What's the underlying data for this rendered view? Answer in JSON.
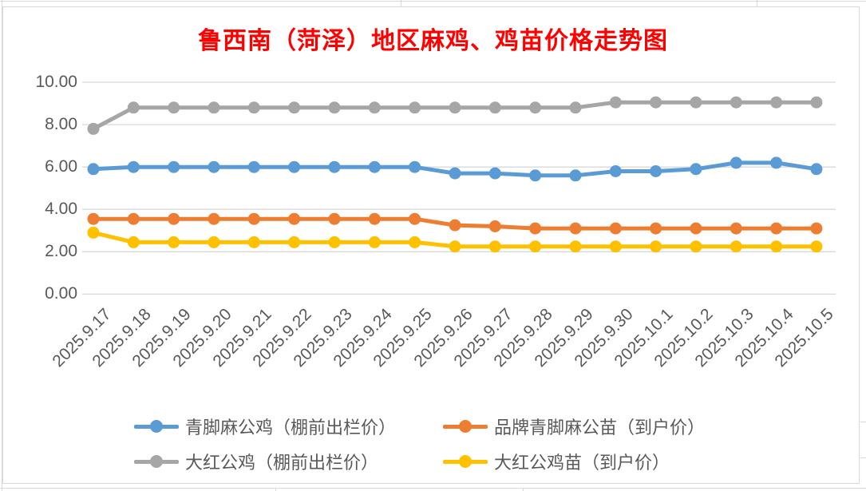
{
  "title": "鲁西南（菏泽）地区麻鸡、鸡苗价格走势图",
  "colors": {
    "title_red": "#ff0000",
    "axis_text": "#595959",
    "gridline": "#d9d9d9",
    "frame_border": "#d9d9d9",
    "background": "#ffffff",
    "series_blue": "#5b9bd5",
    "series_orange": "#ed7d31",
    "series_gray": "#a6a6a6",
    "series_yellow": "#ffc000"
  },
  "chart_data": {
    "type": "line",
    "title": "鲁西南（菏泽）地区麻鸡、鸡苗价格走势图",
    "xlabel": "",
    "ylabel": "",
    "ylim": [
      0,
      10
    ],
    "y_ticks": [
      "10.00",
      "8.00",
      "6.00",
      "4.00",
      "2.00",
      "0.00"
    ],
    "grid": true,
    "legend_position": "bottom",
    "categories": [
      "2025.9.17",
      "2025.9.18",
      "2025.9.19",
      "2025.9.20",
      "2025.9.21",
      "2025.9.22",
      "2025.9.23",
      "2025.9.24",
      "2025.9.25",
      "2025.9.26",
      "2025.9.27",
      "2025.9.28",
      "2025.9.29",
      "2025.9.30",
      "2025.10.1",
      "2025.10.2",
      "2025.10.3",
      "2025.10.4",
      "2025.10.5"
    ],
    "series": [
      {
        "name": "青脚麻公鸡（棚前出栏价）",
        "color": "#5b9bd5",
        "values": [
          5.9,
          6.0,
          6.0,
          6.0,
          6.0,
          6.0,
          6.0,
          6.0,
          6.0,
          5.7,
          5.7,
          5.6,
          5.6,
          5.8,
          5.8,
          5.9,
          6.2,
          6.2,
          5.9
        ]
      },
      {
        "name": "品牌青脚麻公苗（到户价）",
        "color": "#ed7d31",
        "values": [
          3.55,
          3.55,
          3.55,
          3.55,
          3.55,
          3.55,
          3.55,
          3.55,
          3.55,
          3.25,
          3.2,
          3.1,
          3.1,
          3.1,
          3.1,
          3.1,
          3.1,
          3.1,
          3.1
        ]
      },
      {
        "name": "大红公鸡（棚前出栏价）",
        "color": "#a6a6a6",
        "values": [
          7.8,
          8.8,
          8.8,
          8.8,
          8.8,
          8.8,
          8.8,
          8.8,
          8.8,
          8.8,
          8.8,
          8.8,
          8.8,
          9.05,
          9.05,
          9.05,
          9.05,
          9.05,
          9.05
        ]
      },
      {
        "name": "大红公鸡苗（到户价）",
        "color": "#ffc000",
        "values": [
          2.9,
          2.45,
          2.45,
          2.45,
          2.45,
          2.45,
          2.45,
          2.45,
          2.45,
          2.25,
          2.25,
          2.25,
          2.25,
          2.25,
          2.25,
          2.25,
          2.25,
          2.25,
          2.25
        ]
      }
    ]
  }
}
